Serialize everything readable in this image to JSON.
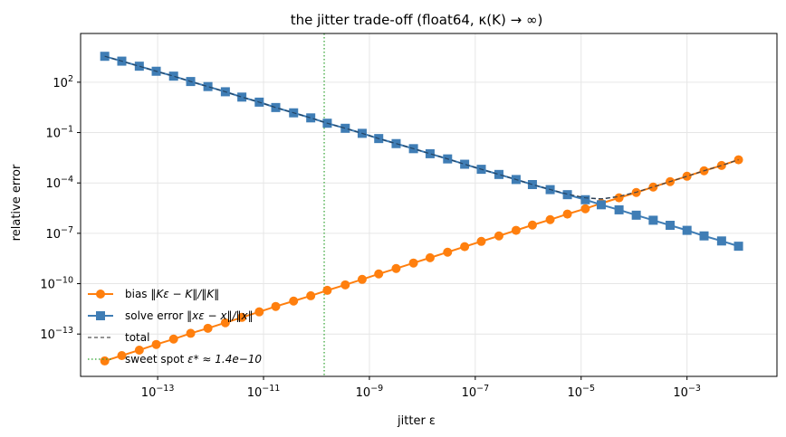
{
  "chart_data": {
    "type": "line",
    "title": "the jitter trade-off (float64, κ(K) → ∞)",
    "xlabel": "jitter ε",
    "ylabel": "relative error",
    "xscale": "log",
    "yscale": "log",
    "xlim": [
      3.5e-15,
      0.05
    ],
    "ylim": [
      3e-16,
      80000
    ],
    "x_ticks": [
      {
        "value": 1e-13,
        "label": "10",
        "exp": "−13"
      },
      {
        "value": 1e-11,
        "label": "10",
        "exp": "−11"
      },
      {
        "value": 1e-09,
        "label": "10",
        "exp": "−9"
      },
      {
        "value": 1e-07,
        "label": "10",
        "exp": "−7"
      },
      {
        "value": 1e-05,
        "label": "10",
        "exp": "−5"
      },
      {
        "value": 0.001,
        "label": "10",
        "exp": "−3"
      }
    ],
    "y_ticks": [
      {
        "value": 1e-13,
        "label": "10",
        "exp": "−13"
      },
      {
        "value": 1e-10,
        "label": "10",
        "exp": "−10"
      },
      {
        "value": 1e-07,
        "label": "10",
        "exp": "−7"
      },
      {
        "value": 0.0001,
        "label": "10",
        "exp": "−4"
      },
      {
        "value": 0.1,
        "label": "10",
        "exp": "−1"
      },
      {
        "value": 100,
        "label": "10",
        "exp": "2"
      }
    ],
    "grid": true,
    "legend_position": "lower-left",
    "x": [
      1e-14,
      2.1e-14,
      4.5e-14,
      9.4e-14,
      2e-13,
      4.2e-13,
      8.9e-13,
      1.9e-12,
      3.9e-12,
      8.3e-12,
      1.7e-11,
      3.7e-11,
      7.8e-11,
      1.6e-10,
      3.5e-10,
      7.3e-10,
      1.5e-09,
      3.2e-09,
      6.8e-09,
      1.4e-08,
      3e-08,
      6.3e-08,
      1.3e-07,
      2.8e-07,
      5.9e-07,
      1.2e-06,
      2.6e-06,
      5.5e-06,
      1.2e-05,
      2.4e-05,
      5.2e-05,
      0.00011,
      0.00023,
      0.00048,
      0.001,
      0.0021,
      0.0045,
      0.0094,
      0.02,
      0.042,
      0.089
    ],
    "series": [
      {
        "name": "bias  ‖Kε − K‖/‖K‖",
        "color": "#ff7f0e",
        "marker": "circle",
        "x": [
          1e-14,
          2.1e-14,
          4.5e-14,
          9.4e-14,
          2e-13,
          4.2e-13,
          8.9e-13,
          1.9e-12,
          3.9e-12,
          8.3e-12,
          1.7e-11,
          3.7e-11,
          7.8e-11,
          1.6e-10,
          3.5e-10,
          7.3e-10,
          1.5e-09,
          3.2e-09,
          6.8e-09,
          1.4e-08,
          3e-08,
          6.3e-08,
          1.3e-07,
          2.8e-07,
          5.9e-07,
          1.2e-06,
          2.6e-06,
          5.5e-06,
          1.2e-05,
          2.4e-05,
          5.2e-05,
          0.00011,
          0.00023,
          0.00048,
          0.001,
          0.0021,
          0.0045,
          0.0094
        ],
        "values": [
          2.5e-15,
          5.2e-15,
          1.1e-14,
          2.4e-14,
          5e-14,
          1.1e-13,
          2.2e-13,
          4.7e-13,
          9.8e-13,
          2.1e-12,
          4.4e-12,
          9.2e-12,
          1.9e-11,
          4e-11,
          8.5e-11,
          1.8e-10,
          3.8e-10,
          8e-10,
          1.7e-09,
          3.5e-09,
          7.5e-09,
          1.6e-08,
          3.3e-08,
          7e-08,
          1.5e-07,
          3.1e-07,
          6.5e-07,
          1.4e-06,
          2.9e-06,
          6.1e-06,
          1.3e-05,
          2.7e-05,
          5.7e-05,
          0.00012,
          0.00025,
          0.00053,
          0.0011,
          0.0024
        ]
      },
      {
        "name": "solve error  ‖xε − x‖/‖x‖",
        "color": "#3f7db5",
        "marker": "square",
        "x": [
          1e-14,
          2.1e-14,
          4.5e-14,
          9.4e-14,
          2e-13,
          4.2e-13,
          8.9e-13,
          1.9e-12,
          3.9e-12,
          8.3e-12,
          1.7e-11,
          3.7e-11,
          7.8e-11,
          1.6e-10,
          3.5e-10,
          7.3e-10,
          1.5e-09,
          3.2e-09,
          6.8e-09,
          1.4e-08,
          3e-08,
          6.3e-08,
          1.3e-07,
          2.8e-07,
          5.9e-07,
          1.2e-06,
          2.6e-06,
          5.5e-06,
          1.2e-05,
          2.4e-05,
          5.2e-05,
          0.00011,
          0.00023,
          0.00048,
          0.001,
          0.0021,
          0.0045,
          0.0094
        ],
        "values": [
          3500,
          1800,
          900,
          450,
          230,
          110,
          55,
          27,
          13,
          6.5,
          3.1,
          1.5,
          0.75,
          0.36,
          0.18,
          0.09,
          0.044,
          0.022,
          0.011,
          0.0055,
          0.0027,
          0.0013,
          0.00065,
          0.00032,
          0.00016,
          8e-05,
          4e-05,
          2e-05,
          1e-05,
          5e-06,
          2.5e-06,
          1.2e-06,
          6e-07,
          3e-07,
          1.5e-07,
          7e-08,
          3.5e-08,
          1.7e-08
        ]
      }
    ],
    "legend": [
      {
        "label": "bias",
        "math": "‖Kε − K‖/‖K‖",
        "style": "orange-circle"
      },
      {
        "label": "solve error",
        "math": "‖xε − x‖/‖x‖",
        "style": "blue-square"
      },
      {
        "label": "total",
        "math": "",
        "style": "dashed"
      },
      {
        "label": "sweet spot",
        "math": "ε* ≈ 1.4e−10",
        "style": "dotted-green"
      }
    ],
    "sweet_spot": 1.4e-10
  }
}
